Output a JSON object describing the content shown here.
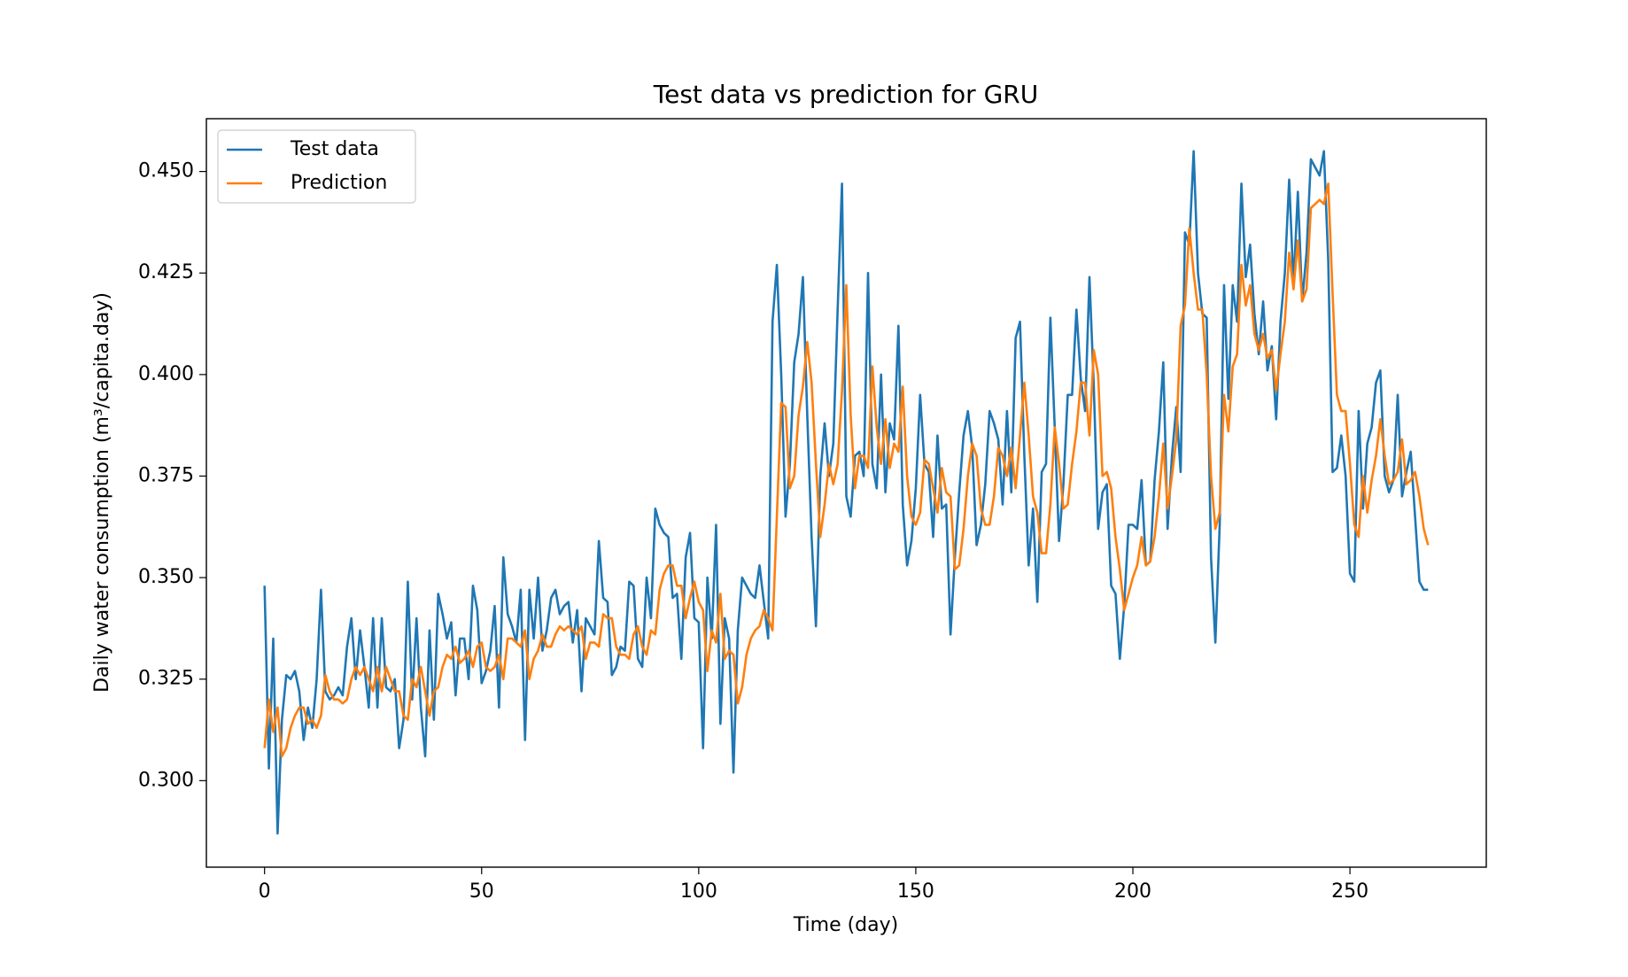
{
  "chart_data": {
    "type": "line",
    "title": "Test data vs prediction for GRU",
    "x_label": "Time (day)",
    "y_label": "Daily water consumption (m³/capita.day)",
    "xlim": [
      -13.4,
      281.4
    ],
    "ylim": [
      0.2787,
      0.463
    ],
    "xticks": [
      0,
      50,
      100,
      150,
      200,
      250
    ],
    "yticks": [
      {
        "value": 0.3,
        "label": "0.300"
      },
      {
        "value": 0.325,
        "label": "0.325"
      },
      {
        "value": 0.35,
        "label": "0.350"
      },
      {
        "value": 0.375,
        "label": "0.375"
      },
      {
        "value": 0.4,
        "label": "0.400"
      },
      {
        "value": 0.425,
        "label": "0.425"
      },
      {
        "value": 0.45,
        "label": "0.450"
      }
    ],
    "grid": false,
    "legend": "upper left",
    "x": [
      0,
      1,
      2,
      3,
      4,
      5,
      6,
      7,
      8,
      9,
      10,
      11,
      12,
      13,
      14,
      15,
      16,
      17,
      18,
      19,
      20,
      21,
      22,
      23,
      24,
      25,
      26,
      27,
      28,
      29,
      30,
      31,
      32,
      33,
      34,
      35,
      36,
      37,
      38,
      39,
      40,
      41,
      42,
      43,
      44,
      45,
      46,
      47,
      48,
      49,
      50,
      51,
      52,
      53,
      54,
      55,
      56,
      57,
      58,
      59,
      60,
      61,
      62,
      63,
      64,
      65,
      66,
      67,
      68,
      69,
      70,
      71,
      72,
      73,
      74,
      75,
      76,
      77,
      78,
      79,
      80,
      81,
      82,
      83,
      84,
      85,
      86,
      87,
      88,
      89,
      90,
      91,
      92,
      93,
      94,
      95,
      96,
      97,
      98,
      99,
      100,
      101,
      102,
      103,
      104,
      105,
      106,
      107,
      108,
      109,
      110,
      111,
      112,
      113,
      114,
      115,
      116,
      117,
      118,
      119,
      120,
      121,
      122,
      123,
      124,
      125,
      126,
      127,
      128,
      129,
      130,
      131,
      132,
      133,
      134,
      135,
      136,
      137,
      138,
      139,
      140,
      141,
      142,
      143,
      144,
      145,
      146,
      147,
      148,
      149,
      150,
      151,
      152,
      153,
      154,
      155,
      156,
      157,
      158,
      159,
      160,
      161,
      162,
      163,
      164,
      165,
      166,
      167,
      168,
      169,
      170,
      171,
      172,
      173,
      174,
      175,
      176,
      177,
      178,
      179,
      180,
      181,
      182,
      183,
      184,
      185,
      186,
      187,
      188,
      189,
      190,
      191,
      192,
      193,
      194,
      195,
      196,
      197,
      198,
      199,
      200,
      201,
      202,
      203,
      204,
      205,
      206,
      207,
      208,
      209,
      210,
      211,
      212,
      213,
      214,
      215,
      216,
      217,
      218,
      219,
      220,
      221,
      222,
      223,
      224,
      225,
      226,
      227,
      228,
      229,
      230,
      231,
      232,
      233,
      234,
      235,
      236,
      237,
      238,
      239,
      240,
      241,
      242,
      243,
      244,
      245,
      246,
      247,
      248,
      249,
      250,
      251,
      252,
      253,
      254,
      255,
      256,
      257,
      258,
      259,
      260,
      261,
      262,
      263,
      264,
      265,
      266,
      267,
      268
    ],
    "series": [
      {
        "name": "Test data",
        "color": "#1f77b4",
        "values": [
          0.348,
          0.303,
          0.335,
          0.287,
          0.315,
          0.326,
          0.325,
          0.327,
          0.322,
          0.31,
          0.318,
          0.313,
          0.325,
          0.347,
          0.322,
          0.32,
          0.321,
          0.323,
          0.321,
          0.333,
          0.34,
          0.325,
          0.337,
          0.328,
          0.318,
          0.34,
          0.318,
          0.34,
          0.323,
          0.322,
          0.325,
          0.308,
          0.315,
          0.349,
          0.32,
          0.34,
          0.318,
          0.306,
          0.337,
          0.315,
          0.346,
          0.341,
          0.335,
          0.339,
          0.321,
          0.335,
          0.335,
          0.325,
          0.348,
          0.342,
          0.324,
          0.327,
          0.332,
          0.343,
          0.318,
          0.355,
          0.341,
          0.338,
          0.334,
          0.347,
          0.31,
          0.347,
          0.335,
          0.35,
          0.332,
          0.337,
          0.345,
          0.347,
          0.341,
          0.343,
          0.344,
          0.334,
          0.342,
          0.322,
          0.34,
          0.338,
          0.336,
          0.359,
          0.345,
          0.344,
          0.326,
          0.328,
          0.333,
          0.332,
          0.349,
          0.348,
          0.33,
          0.328,
          0.35,
          0.34,
          0.367,
          0.363,
          0.361,
          0.36,
          0.345,
          0.346,
          0.33,
          0.355,
          0.361,
          0.34,
          0.339,
          0.308,
          0.35,
          0.335,
          0.363,
          0.314,
          0.34,
          0.335,
          0.302,
          0.337,
          0.35,
          0.348,
          0.346,
          0.345,
          0.353,
          0.344,
          0.335,
          0.413,
          0.427,
          0.4,
          0.365,
          0.378,
          0.403,
          0.41,
          0.424,
          0.39,
          0.36,
          0.338,
          0.375,
          0.388,
          0.375,
          0.383,
          0.416,
          0.447,
          0.37,
          0.365,
          0.38,
          0.381,
          0.375,
          0.425,
          0.378,
          0.372,
          0.4,
          0.371,
          0.388,
          0.384,
          0.412,
          0.368,
          0.353,
          0.359,
          0.372,
          0.395,
          0.378,
          0.376,
          0.36,
          0.385,
          0.367,
          0.368,
          0.336,
          0.355,
          0.371,
          0.385,
          0.391,
          0.382,
          0.358,
          0.363,
          0.373,
          0.391,
          0.388,
          0.384,
          0.368,
          0.391,
          0.371,
          0.409,
          0.413,
          0.38,
          0.353,
          0.367,
          0.344,
          0.376,
          0.378,
          0.414,
          0.387,
          0.359,
          0.373,
          0.395,
          0.395,
          0.416,
          0.399,
          0.391,
          0.424,
          0.397,
          0.362,
          0.371,
          0.373,
          0.348,
          0.346,
          0.33,
          0.343,
          0.363,
          0.363,
          0.362,
          0.374,
          0.353,
          0.354,
          0.374,
          0.386,
          0.403,
          0.362,
          0.38,
          0.392,
          0.376,
          0.435,
          0.432,
          0.455,
          0.425,
          0.415,
          0.414,
          0.355,
          0.334,
          0.363,
          0.422,
          0.394,
          0.422,
          0.413,
          0.447,
          0.424,
          0.432,
          0.415,
          0.405,
          0.418,
          0.401,
          0.407,
          0.389,
          0.413,
          0.425,
          0.448,
          0.422,
          0.445,
          0.418,
          0.43,
          0.453,
          0.451,
          0.449,
          0.455,
          0.428,
          0.376,
          0.377,
          0.385,
          0.375,
          0.351,
          0.349,
          0.391,
          0.367,
          0.383,
          0.387,
          0.398,
          0.401,
          0.375,
          0.371,
          0.374,
          0.395,
          0.37,
          0.376,
          0.381,
          0.365,
          0.349,
          0.347,
          0.347
        ]
      },
      {
        "name": "Prediction",
        "color": "#ff7f0e",
        "values": [
          0.308,
          0.32,
          0.312,
          0.318,
          0.306,
          0.308,
          0.313,
          0.316,
          0.318,
          0.318,
          0.314,
          0.315,
          0.313,
          0.316,
          0.326,
          0.322,
          0.32,
          0.32,
          0.319,
          0.32,
          0.325,
          0.328,
          0.326,
          0.328,
          0.325,
          0.322,
          0.328,
          0.322,
          0.328,
          0.325,
          0.322,
          0.322,
          0.316,
          0.315,
          0.325,
          0.323,
          0.328,
          0.322,
          0.316,
          0.322,
          0.323,
          0.328,
          0.331,
          0.33,
          0.333,
          0.329,
          0.33,
          0.332,
          0.328,
          0.333,
          0.334,
          0.328,
          0.327,
          0.328,
          0.331,
          0.325,
          0.335,
          0.335,
          0.334,
          0.333,
          0.337,
          0.325,
          0.33,
          0.332,
          0.336,
          0.333,
          0.333,
          0.336,
          0.338,
          0.337,
          0.338,
          0.337,
          0.336,
          0.338,
          0.33,
          0.334,
          0.334,
          0.333,
          0.341,
          0.34,
          0.34,
          0.333,
          0.331,
          0.331,
          0.33,
          0.336,
          0.338,
          0.333,
          0.331,
          0.337,
          0.336,
          0.347,
          0.351,
          0.353,
          0.353,
          0.348,
          0.348,
          0.34,
          0.345,
          0.349,
          0.344,
          0.342,
          0.327,
          0.337,
          0.334,
          0.346,
          0.33,
          0.332,
          0.331,
          0.319,
          0.323,
          0.331,
          0.335,
          0.337,
          0.338,
          0.342,
          0.34,
          0.337,
          0.365,
          0.393,
          0.392,
          0.372,
          0.375,
          0.39,
          0.397,
          0.408,
          0.398,
          0.378,
          0.36,
          0.368,
          0.378,
          0.373,
          0.378,
          0.396,
          0.422,
          0.39,
          0.372,
          0.38,
          0.38,
          0.377,
          0.402,
          0.387,
          0.378,
          0.389,
          0.377,
          0.383,
          0.381,
          0.397,
          0.375,
          0.365,
          0.363,
          0.366,
          0.379,
          0.378,
          0.372,
          0.366,
          0.377,
          0.371,
          0.37,
          0.352,
          0.353,
          0.362,
          0.375,
          0.383,
          0.38,
          0.367,
          0.363,
          0.363,
          0.37,
          0.382,
          0.38,
          0.375,
          0.382,
          0.372,
          0.385,
          0.398,
          0.385,
          0.37,
          0.366,
          0.356,
          0.356,
          0.368,
          0.387,
          0.378,
          0.367,
          0.368,
          0.378,
          0.386,
          0.398,
          0.398,
          0.385,
          0.406,
          0.4,
          0.375,
          0.376,
          0.372,
          0.36,
          0.352,
          0.342,
          0.346,
          0.35,
          0.353,
          0.36,
          0.353,
          0.354,
          0.36,
          0.37,
          0.383,
          0.367,
          0.375,
          0.384,
          0.412,
          0.417,
          0.436,
          0.425,
          0.416,
          0.416,
          0.4,
          0.375,
          0.362,
          0.366,
          0.395,
          0.386,
          0.402,
          0.405,
          0.427,
          0.417,
          0.422,
          0.41,
          0.406,
          0.41,
          0.404,
          0.406,
          0.396,
          0.405,
          0.413,
          0.43,
          0.421,
          0.433,
          0.418,
          0.421,
          0.441,
          0.442,
          0.443,
          0.442,
          0.447,
          0.42,
          0.395,
          0.391,
          0.391,
          0.378,
          0.363,
          0.36,
          0.375,
          0.366,
          0.374,
          0.38,
          0.389,
          0.38,
          0.373,
          0.374,
          0.376,
          0.384,
          0.373,
          0.374,
          0.376,
          0.37,
          0.362,
          0.358
        ]
      }
    ]
  }
}
